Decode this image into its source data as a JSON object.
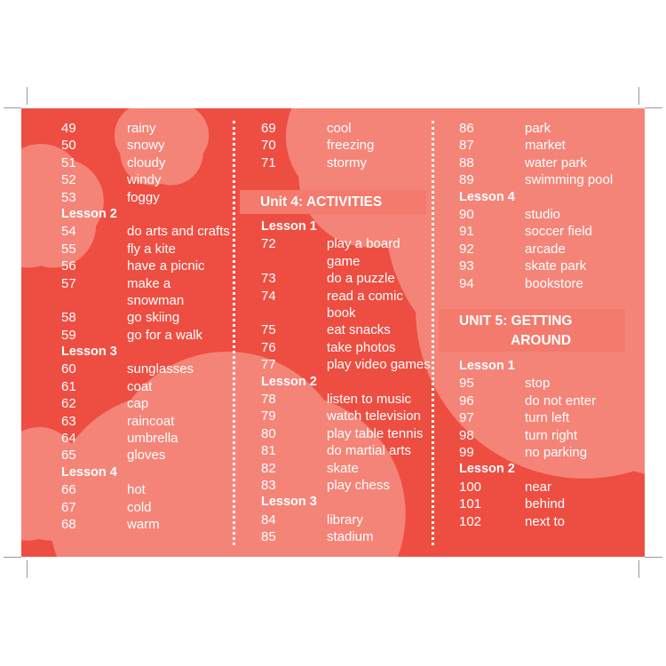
{
  "colors": {
    "background": "#ee4e42",
    "unit_band": "#f37a6c",
    "text": "#ffffff"
  },
  "col1": {
    "items": [
      {
        "type": "item",
        "num": "49",
        "word": "rainy"
      },
      {
        "type": "item",
        "num": "50",
        "word": "snowy"
      },
      {
        "type": "item",
        "num": "51",
        "word": "cloudy"
      },
      {
        "type": "item",
        "num": "52",
        "word": "windy"
      },
      {
        "type": "item",
        "num": "53",
        "word": "foggy"
      },
      {
        "type": "lesson",
        "label": "Lesson 2"
      },
      {
        "type": "item",
        "num": "54",
        "word": "do arts and crafts"
      },
      {
        "type": "item",
        "num": "55",
        "word": "fly a kite"
      },
      {
        "type": "item",
        "num": "56",
        "word": "have a picnic"
      },
      {
        "type": "item",
        "num": "57",
        "word": "make a snowman",
        "tall": true
      },
      {
        "type": "item",
        "num": "58",
        "word": "go skiing"
      },
      {
        "type": "item",
        "num": "59",
        "word": "go for a walk"
      },
      {
        "type": "lesson",
        "label": "Lesson 3"
      },
      {
        "type": "item",
        "num": "60",
        "word": "sunglasses"
      },
      {
        "type": "item",
        "num": "61",
        "word": "coat"
      },
      {
        "type": "item",
        "num": "62",
        "word": "cap"
      },
      {
        "type": "item",
        "num": "63",
        "word": "raincoat"
      },
      {
        "type": "item",
        "num": "64",
        "word": "umbrella"
      },
      {
        "type": "item",
        "num": "65",
        "word": "gloves"
      },
      {
        "type": "lesson",
        "label": "Lesson 4"
      },
      {
        "type": "item",
        "num": "66",
        "word": "hot"
      },
      {
        "type": "item",
        "num": "67",
        "word": "cold"
      },
      {
        "type": "item",
        "num": "68",
        "word": "warm"
      }
    ]
  },
  "col2": {
    "top_items": [
      {
        "type": "item",
        "num": "69",
        "word": "cool"
      },
      {
        "type": "item",
        "num": "70",
        "word": "freezing"
      },
      {
        "type": "item",
        "num": "71",
        "word": "stormy"
      }
    ],
    "unit_title": "Unit 4: ACTIVITIES",
    "items": [
      {
        "type": "lesson",
        "label": "Lesson 1"
      },
      {
        "type": "item",
        "num": "72",
        "word": "play a board game",
        "tall": true
      },
      {
        "type": "item",
        "num": "73",
        "word": "do a puzzle"
      },
      {
        "type": "item",
        "num": "74",
        "word": "read a comic book",
        "tall": true
      },
      {
        "type": "item",
        "num": "75",
        "word": "eat snacks"
      },
      {
        "type": "item",
        "num": "76",
        "word": "take photos"
      },
      {
        "type": "item",
        "num": "77",
        "word": "play video games"
      },
      {
        "type": "lesson",
        "label": "Lesson 2"
      },
      {
        "type": "item",
        "num": "78",
        "word": "listen to music"
      },
      {
        "type": "item",
        "num": "79",
        "word": "watch television"
      },
      {
        "type": "item",
        "num": "80",
        "word": "play table tennis"
      },
      {
        "type": "item",
        "num": "81",
        "word": "do martial arts"
      },
      {
        "type": "item",
        "num": "82",
        "word": "skate"
      },
      {
        "type": "item",
        "num": "83",
        "word": "play chess"
      },
      {
        "type": "lesson",
        "label": "Lesson 3"
      },
      {
        "type": "item",
        "num": "84",
        "word": "library"
      },
      {
        "type": "item",
        "num": "85",
        "word": "stadium"
      }
    ]
  },
  "col3": {
    "top_items": [
      {
        "type": "item",
        "num": "86",
        "word": "park"
      },
      {
        "type": "item",
        "num": "87",
        "word": "market"
      },
      {
        "type": "item",
        "num": "88",
        "word": "water park"
      },
      {
        "type": "item",
        "num": "89",
        "word": "swimming pool"
      },
      {
        "type": "lesson",
        "label": "Lesson 4"
      },
      {
        "type": "item",
        "num": "90",
        "word": "studio"
      },
      {
        "type": "item",
        "num": "91",
        "word": "soccer field"
      },
      {
        "type": "item",
        "num": "92",
        "word": "arcade"
      },
      {
        "type": "item",
        "num": "93",
        "word": "skate park"
      },
      {
        "type": "item",
        "num": "94",
        "word": "bookstore"
      }
    ],
    "unit_title_line1": "UNIT 5: GETTING",
    "unit_title_line2": "AROUND",
    "items": [
      {
        "type": "lesson",
        "label": "Lesson 1"
      },
      {
        "type": "item",
        "num": "95",
        "word": "stop"
      },
      {
        "type": "item",
        "num": "96",
        "word": "do not enter"
      },
      {
        "type": "item",
        "num": "97",
        "word": "turn left"
      },
      {
        "type": "item",
        "num": "98",
        "word": "turn right"
      },
      {
        "type": "item",
        "num": "99",
        "word": "no parking"
      },
      {
        "type": "lesson",
        "label": "Lesson 2"
      },
      {
        "type": "item",
        "num": "100",
        "word": "near"
      },
      {
        "type": "item",
        "num": "101",
        "word": "behind"
      },
      {
        "type": "item",
        "num": "102",
        "word": "next to"
      }
    ]
  }
}
